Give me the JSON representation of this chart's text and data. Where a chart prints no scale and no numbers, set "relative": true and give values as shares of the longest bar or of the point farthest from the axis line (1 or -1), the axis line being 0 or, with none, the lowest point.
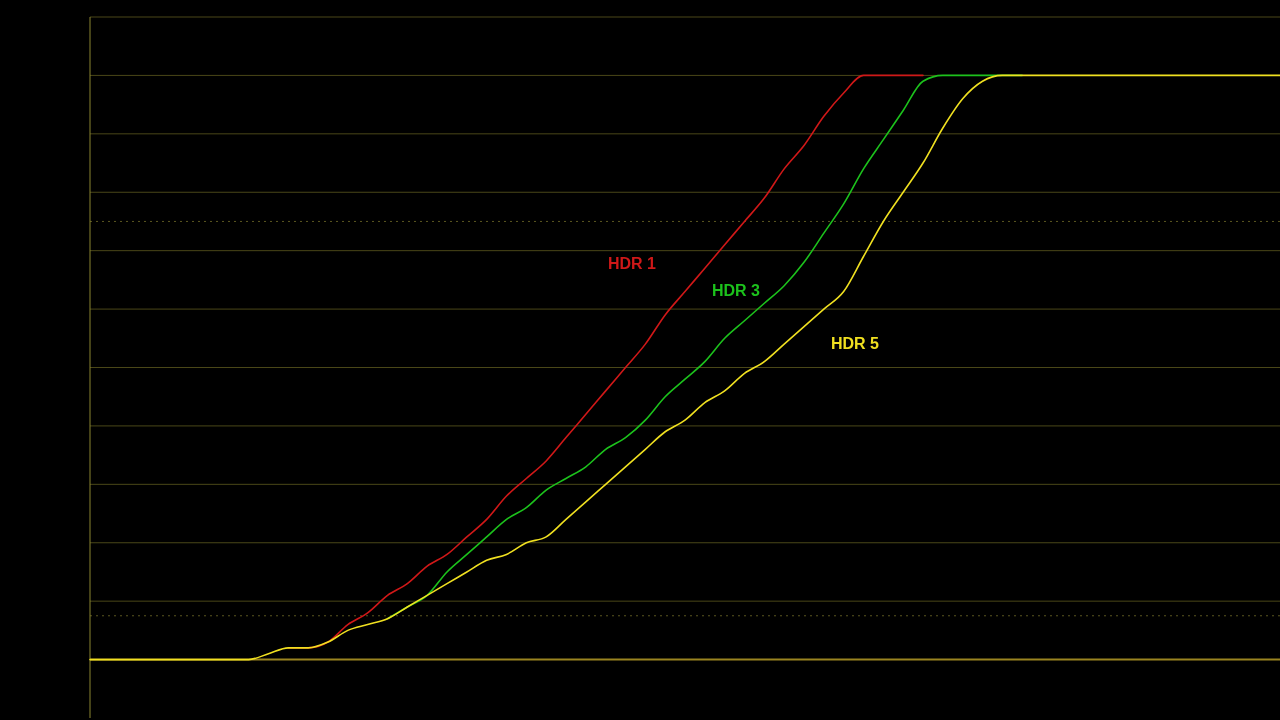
{
  "chart_data": {
    "type": "line",
    "relative": true,
    "line_style": "solid",
    "marker": "none",
    "categories": [
      null,
      null,
      null,
      null,
      null,
      null,
      null,
      null,
      null,
      null,
      null,
      null,
      null,
      null,
      null,
      null,
      null,
      null,
      null,
      null,
      null,
      null,
      null,
      null,
      null,
      null,
      null,
      null,
      null,
      null,
      null,
      null,
      null,
      null,
      null,
      null,
      null,
      null,
      null,
      null,
      null,
      null,
      null,
      null,
      null,
      null,
      null,
      null,
      null,
      null,
      null,
      null,
      null,
      null,
      null,
      null,
      null,
      null,
      null,
      null,
      null
    ],
    "ref_lines": [
      {
        "axis": "y",
        "value": 0.1,
        "color": "#4a4718",
        "line_style": "solid"
      },
      {
        "axis": "y",
        "value": 0.2,
        "color": "#4a4718",
        "line_style": "solid"
      },
      {
        "axis": "y",
        "value": 0.3,
        "color": "#4a4718",
        "line_style": "solid"
      },
      {
        "axis": "y",
        "value": 0.4,
        "color": "#4a4718",
        "line_style": "solid"
      },
      {
        "axis": "y",
        "value": 0.5,
        "color": "#4a4718",
        "line_style": "solid"
      },
      {
        "axis": "y",
        "value": 0.6,
        "color": "#4a4718",
        "line_style": "solid"
      },
      {
        "axis": "y",
        "value": 0.7,
        "color": "#4a4718",
        "line_style": "solid"
      },
      {
        "axis": "y",
        "value": 0.8,
        "color": "#4a4718",
        "line_style": "solid"
      },
      {
        "axis": "y",
        "value": 0.9,
        "color": "#4a4718",
        "line_style": "solid"
      },
      {
        "axis": "y",
        "value": 1,
        "color": "#4a4718",
        "line_style": "solid"
      },
      {
        "axis": "y",
        "value": 1.1,
        "color": "#4a4718",
        "line_style": "solid"
      },
      {
        "axis": "y",
        "value": 0.75,
        "color": "#5a5620",
        "line_style": "dotted"
      },
      {
        "axis": "y",
        "value": 0.075,
        "color": "#5a5620",
        "line_style": "dotted"
      }
    ],
    "series": [
      {
        "name": "HDR 1",
        "color": "#d01818",
        "values": [
          null,
          null,
          null,
          null,
          null,
          null,
          null,
          null,
          null,
          null,
          0.02,
          0.02,
          0.03,
          0.06,
          0.08,
          0.11,
          0.13,
          0.16,
          0.18,
          0.21,
          0.24,
          0.28,
          0.31,
          0.34,
          0.38,
          0.42,
          0.46,
          0.5,
          0.54,
          0.59,
          0.63,
          0.67,
          0.71,
          0.75,
          0.79,
          0.84,
          0.88,
          0.93,
          0.97,
          1,
          1,
          1,
          1,
          null,
          null,
          null,
          null,
          null,
          null,
          null,
          null,
          null,
          null,
          null,
          null,
          null,
          null,
          null,
          null,
          null,
          null
        ]
      },
      {
        "name": "HDR 3",
        "color": "#1cc21c",
        "values": [
          null,
          null,
          null,
          null,
          null,
          null,
          null,
          null,
          null,
          null,
          null,
          null,
          null,
          null,
          null,
          0.07,
          0.09,
          0.11,
          0.15,
          0.18,
          0.21,
          0.24,
          0.26,
          0.29,
          0.31,
          0.33,
          0.36,
          0.38,
          0.41,
          0.45,
          0.48,
          0.51,
          0.55,
          0.58,
          0.61,
          0.64,
          0.68,
          0.73,
          0.78,
          0.84,
          0.89,
          0.94,
          0.99,
          1,
          1,
          1,
          1,
          1,
          null,
          null,
          null,
          null,
          null,
          null,
          null,
          null,
          null,
          null,
          null,
          null,
          null
        ]
      },
      {
        "name": "HDR 5",
        "color": "#f0e020",
        "values": [
          0,
          0,
          0,
          0,
          0,
          0,
          0,
          0,
          0,
          0.01,
          0.02,
          0.02,
          0.03,
          0.05,
          0.06,
          0.07,
          0.09,
          0.11,
          0.13,
          0.15,
          0.17,
          0.18,
          0.2,
          0.21,
          0.24,
          0.27,
          0.3,
          0.33,
          0.36,
          0.39,
          0.41,
          0.44,
          0.46,
          0.49,
          0.51,
          0.54,
          0.57,
          0.6,
          0.63,
          0.69,
          0.75,
          0.8,
          0.85,
          0.91,
          0.96,
          0.99,
          1,
          1,
          1,
          1,
          1,
          1,
          1,
          1,
          1,
          1,
          1,
          1,
          1,
          1,
          1
        ]
      }
    ]
  }
}
